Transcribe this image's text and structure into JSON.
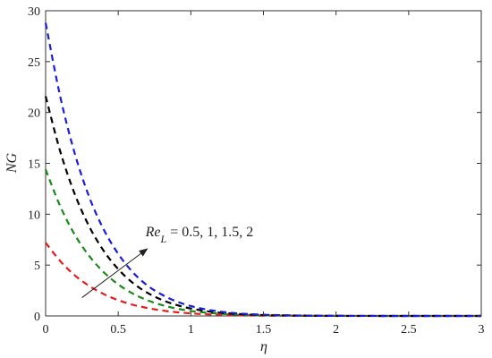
{
  "chart_data": {
    "type": "line",
    "title": "",
    "xlabel": "η",
    "ylabel": "NG",
    "xlim": [
      0,
      3
    ],
    "ylim": [
      0,
      30
    ],
    "xticks": [
      0,
      0.5,
      1,
      1.5,
      2,
      2.5,
      3
    ],
    "xtick_labels": [
      "0",
      "0.5",
      "1",
      "1.5",
      "2",
      "2.5",
      "3"
    ],
    "yticks": [
      0,
      5,
      10,
      15,
      20,
      25,
      30
    ],
    "ytick_labels": [
      "0",
      "5",
      "10",
      "15",
      "20",
      "25",
      "30"
    ],
    "grid": false,
    "x": [
      0,
      0.1,
      0.2,
      0.3,
      0.4,
      0.5,
      0.6,
      0.7,
      0.8,
      0.9,
      1.0,
      1.1,
      1.2,
      1.3,
      1.4,
      1.5,
      1.6,
      1.8,
      2.0,
      2.5,
      3.0
    ],
    "series": [
      {
        "color": "#e8191d",
        "values": [
          7.2,
          5.4,
          4.0,
          2.95,
          2.15,
          1.55,
          1.1,
          0.78,
          0.54,
          0.37,
          0.25,
          0.17,
          0.11,
          0.07,
          0.05,
          0.03,
          0.02,
          0.01,
          0.0,
          0.0,
          0.0
        ]
      },
      {
        "color": "#1a8a1a",
        "values": [
          14.4,
          10.8,
          8.0,
          5.9,
          4.3,
          3.1,
          2.2,
          1.55,
          1.07,
          0.73,
          0.49,
          0.33,
          0.22,
          0.14,
          0.09,
          0.06,
          0.04,
          0.02,
          0.01,
          0.0,
          0.0
        ]
      },
      {
        "color": "#000000",
        "values": [
          21.6,
          16.2,
          12.0,
          8.8,
          6.4,
          4.6,
          3.25,
          2.28,
          1.58,
          1.08,
          0.73,
          0.49,
          0.32,
          0.21,
          0.14,
          0.09,
          0.06,
          0.03,
          0.01,
          0.0,
          0.0
        ]
      },
      {
        "color": "#1c1ce0",
        "values": [
          28.8,
          21.6,
          16.0,
          11.7,
          8.5,
          6.1,
          4.3,
          3.0,
          2.1,
          1.43,
          0.97,
          0.65,
          0.43,
          0.28,
          0.18,
          0.12,
          0.08,
          0.03,
          0.01,
          0.0,
          0.0
        ]
      }
    ],
    "annotation": {
      "symbol": "Re",
      "subscript": "L",
      "values_text": " = 0.5, 1, 1.5, 2",
      "arrow_from": [
        0.25,
        1.8
      ],
      "arrow_to": [
        0.7,
        6.6
      ],
      "text_at": [
        0.7,
        7.3
      ]
    }
  }
}
